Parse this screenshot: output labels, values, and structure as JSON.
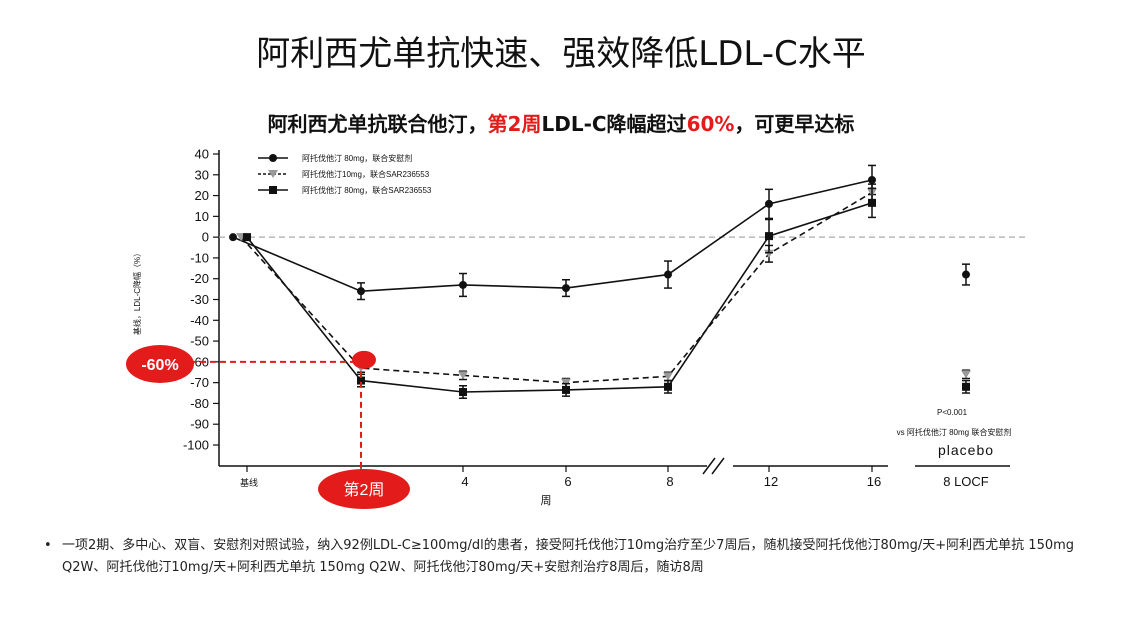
{
  "slide": {
    "title": "阿利西尤单抗快速、强效降低LDL-C水平",
    "chart_title_parts": [
      "阿利西尤单抗联合他汀，",
      "第2周",
      "LDL-C降幅超过",
      "60%",
      "，可更早达标"
    ]
  },
  "annotations": {
    "callout_60": "-60%",
    "callout_week2": "第2周",
    "pvalue": "P<0.001",
    "vs_text": "vs 阿托伐他汀 80mg 联合安慰剂",
    "placebo": "placebo"
  },
  "footnote": {
    "bullet": "•",
    "text": "一项2期、多中心、双盲、安慰剂对照试验，纳入92例LDL-C≥100mg/dl的患者，接受阿托伐他汀10mg治疗至少7周后，随机接受阿托伐他汀80mg/天+阿利西尤单抗 150mg Q2W、阿托伐他汀10mg/天+阿利西尤单抗 150mg Q2W、阿托伐他汀80mg/天+安慰剂治疗8周后，随访8周"
  },
  "colors": {
    "accent_red": "#e31b1b",
    "line_black": "#111111",
    "marker_gray": "#9a9a9a",
    "zero_line": "#aaaaaa"
  },
  "chart_data": {
    "type": "line",
    "title": "阿利西尤单抗联合他汀，第2周LDL-C降幅超过60%，可更早达标",
    "xlabel": "周",
    "ylabel": "基线，LDL-C降幅（%）",
    "ylim": [
      -100,
      40
    ],
    "yticks": [
      40,
      30,
      20,
      10,
      0,
      -10,
      -20,
      -30,
      -40,
      -50,
      -60,
      -70,
      -80,
      -90,
      -100
    ],
    "x": [
      0,
      2,
      4,
      6,
      8,
      12,
      16
    ],
    "xtick_labels": [
      "基线",
      "",
      "4",
      "6",
      "8",
      "12",
      "16"
    ],
    "extra_category": "8 LOCF",
    "legend_position": "top-left",
    "grid": false,
    "series": [
      {
        "name": "阿托伐他汀 80mg，联合安慰剂",
        "marker": "circle",
        "dash": "solid",
        "values": [
          0,
          -26,
          -23,
          -24.5,
          -18,
          16,
          27.5
        ],
        "errors": [
          0,
          4,
          5.5,
          4,
          6.5,
          7,
          7
        ],
        "locf": -18,
        "locf_error": 5
      },
      {
        "name": "阿托伐他汀10mg，联合SAR236553",
        "marker": "triangle",
        "dash": "dashed",
        "values": [
          0,
          -63,
          -66.5,
          -70,
          -67,
          -8,
          21.5
        ],
        "errors": [
          0,
          2,
          2,
          2,
          2,
          4,
          4
        ],
        "locf": -66,
        "locf_error": 2
      },
      {
        "name": "阿托伐他汀 80mg，联合SAR236553",
        "marker": "square",
        "dash": "solid",
        "values": [
          0,
          -69,
          -74.5,
          -73.5,
          -72,
          0.5,
          16.5
        ],
        "errors": [
          0,
          3,
          3,
          3,
          3,
          8,
          7
        ],
        "locf": -72,
        "locf_error": 3
      }
    ]
  }
}
